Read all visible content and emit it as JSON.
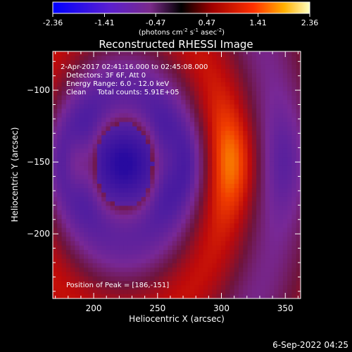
{
  "colorbar": {
    "ticks": [
      "-2.36",
      "-1.41",
      "-0.47",
      "0.47",
      "1.41",
      "2.36"
    ],
    "units_line1": "(photons cm",
    "units_exp1": "-2",
    "units_line2": " s",
    "units_exp2": "-1",
    "units_line3": " asec",
    "units_exp3": "-2",
    "units_close": ")"
  },
  "chart_data": {
    "type": "heatmap",
    "title": "Reconstructed RHESSI Image",
    "xlabel": "Heliocentric X (arcsec)",
    "ylabel": "Heliocentric Y (arcsec)",
    "xlim": [
      168,
      362
    ],
    "ylim": [
      -245,
      -73
    ],
    "x_ticks": [
      200,
      250,
      300,
      350
    ],
    "y_ticks": [
      -100,
      -150,
      -200
    ],
    "colorbar_range": [
      -2.36,
      2.36
    ],
    "peak": [
      186,
      -151
    ],
    "annotations": {
      "time": "2-Apr-2017 02:41:16.000 to 02:45:08.000",
      "detectors": "Detectors: 3F 6F, Att 0",
      "energy": "Energy Range: 6.0 - 12.0 keV",
      "clean": "Clean     Total counts: 5.91E+05",
      "peak": "Position of Peak = [186,-151]"
    }
  },
  "footer": {
    "date": "6-Sep-2022 04:25"
  }
}
